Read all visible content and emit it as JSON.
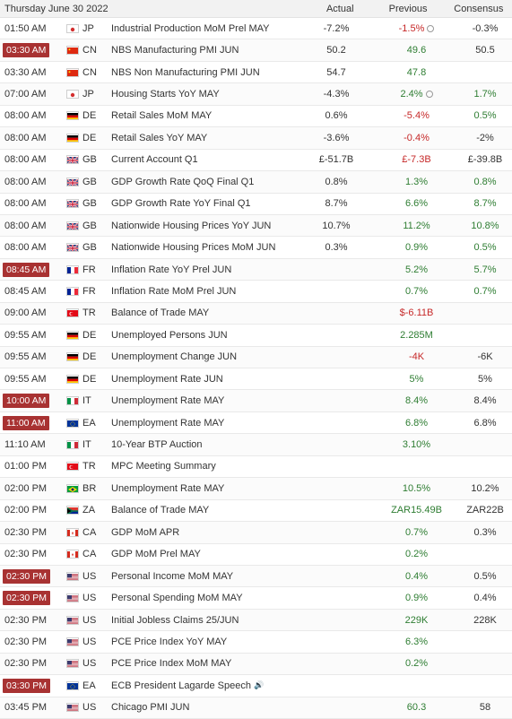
{
  "header": {
    "date": "Thursday June 30 2022",
    "actual": "Actual",
    "previous": "Previous",
    "consensus": "Consensus"
  },
  "colors": {
    "live_badge": "#a83232",
    "positive": "#2e7d32",
    "negative": "#c62828"
  },
  "rows": [
    {
      "time": "01:50 AM",
      "live": false,
      "country": "JP",
      "flag": "jp",
      "event": "Industrial Production MoM Prel MAY",
      "actual": "-7.2%",
      "previous": "-1.5%",
      "previous_color": "red",
      "previous_revised": true,
      "consensus": "-0.3%",
      "consensus_color": "dark"
    },
    {
      "time": "03:30 AM",
      "live": true,
      "country": "CN",
      "flag": "cn",
      "event": "NBS Manufacturing PMI JUN",
      "actual": "50.2",
      "previous": "49.6",
      "previous_color": "green",
      "previous_revised": false,
      "consensus": "50.5",
      "consensus_color": "dark"
    },
    {
      "time": "03:30 AM",
      "live": false,
      "country": "CN",
      "flag": "cn",
      "event": "NBS Non Manufacturing PMI JUN",
      "actual": "54.7",
      "previous": "47.8",
      "previous_color": "green",
      "previous_revised": false,
      "consensus": "",
      "consensus_color": "dark"
    },
    {
      "time": "07:00 AM",
      "live": false,
      "country": "JP",
      "flag": "jp",
      "event": "Housing Starts YoY MAY",
      "actual": "-4.3%",
      "previous": "2.4%",
      "previous_color": "green",
      "previous_revised": true,
      "consensus": "1.7%",
      "consensus_color": "green"
    },
    {
      "time": "08:00 AM",
      "live": false,
      "country": "DE",
      "flag": "de",
      "event": "Retail Sales MoM MAY",
      "actual": "0.6%",
      "previous": "-5.4%",
      "previous_color": "red",
      "previous_revised": false,
      "consensus": "0.5%",
      "consensus_color": "green"
    },
    {
      "time": "08:00 AM",
      "live": false,
      "country": "DE",
      "flag": "de",
      "event": "Retail Sales YoY MAY",
      "actual": "-3.6%",
      "previous": "-0.4%",
      "previous_color": "red",
      "previous_revised": false,
      "consensus": "-2%",
      "consensus_color": "dark"
    },
    {
      "time": "08:00 AM",
      "live": false,
      "country": "GB",
      "flag": "gb",
      "event": "Current Account Q1",
      "actual": "£-51.7B",
      "previous": "£-7.3B",
      "previous_color": "red",
      "previous_revised": false,
      "consensus": "£-39.8B",
      "consensus_color": "dark"
    },
    {
      "time": "08:00 AM",
      "live": false,
      "country": "GB",
      "flag": "gb",
      "event": "GDP Growth Rate QoQ Final Q1",
      "actual": "0.8%",
      "previous": "1.3%",
      "previous_color": "green",
      "previous_revised": false,
      "consensus": "0.8%",
      "consensus_color": "green"
    },
    {
      "time": "08:00 AM",
      "live": false,
      "country": "GB",
      "flag": "gb",
      "event": "GDP Growth Rate YoY Final Q1",
      "actual": "8.7%",
      "previous": "6.6%",
      "previous_color": "green",
      "previous_revised": false,
      "consensus": "8.7%",
      "consensus_color": "green"
    },
    {
      "time": "08:00 AM",
      "live": false,
      "country": "GB",
      "flag": "gb",
      "event": "Nationwide Housing Prices YoY JUN",
      "actual": "10.7%",
      "previous": "11.2%",
      "previous_color": "green",
      "previous_revised": false,
      "consensus": "10.8%",
      "consensus_color": "green"
    },
    {
      "time": "08:00 AM",
      "live": false,
      "country": "GB",
      "flag": "gb",
      "event": "Nationwide Housing Prices MoM JUN",
      "actual": "0.3%",
      "previous": "0.9%",
      "previous_color": "green",
      "previous_revised": false,
      "consensus": "0.5%",
      "consensus_color": "green"
    },
    {
      "time": "08:45 AM",
      "live": true,
      "country": "FR",
      "flag": "fr",
      "event": "Inflation Rate YoY Prel JUN",
      "actual": "",
      "previous": "5.2%",
      "previous_color": "green",
      "previous_revised": false,
      "consensus": "5.7%",
      "consensus_color": "green"
    },
    {
      "time": "08:45 AM",
      "live": false,
      "country": "FR",
      "flag": "fr",
      "event": "Inflation Rate MoM Prel JUN",
      "actual": "",
      "previous": "0.7%",
      "previous_color": "green",
      "previous_revised": false,
      "consensus": "0.7%",
      "consensus_color": "green"
    },
    {
      "time": "09:00 AM",
      "live": false,
      "country": "TR",
      "flag": "tr",
      "event": "Balance of Trade MAY",
      "actual": "",
      "previous": "$-6.11B",
      "previous_color": "red",
      "previous_revised": false,
      "consensus": "",
      "consensus_color": "dark"
    },
    {
      "time": "09:55 AM",
      "live": false,
      "country": "DE",
      "flag": "de",
      "event": "Unemployed Persons JUN",
      "actual": "",
      "previous": "2.285M",
      "previous_color": "green",
      "previous_revised": false,
      "consensus": "",
      "consensus_color": "dark"
    },
    {
      "time": "09:55 AM",
      "live": false,
      "country": "DE",
      "flag": "de",
      "event": "Unemployment Change JUN",
      "actual": "",
      "previous": "-4K",
      "previous_color": "red",
      "previous_revised": false,
      "consensus": "-6K",
      "consensus_color": "dark"
    },
    {
      "time": "09:55 AM",
      "live": false,
      "country": "DE",
      "flag": "de",
      "event": "Unemployment Rate JUN",
      "actual": "",
      "previous": "5%",
      "previous_color": "green",
      "previous_revised": false,
      "consensus": "5%",
      "consensus_color": "dark"
    },
    {
      "time": "10:00 AM",
      "live": true,
      "country": "IT",
      "flag": "it",
      "event": "Unemployment Rate MAY",
      "actual": "",
      "previous": "8.4%",
      "previous_color": "green",
      "previous_revised": false,
      "consensus": "8.4%",
      "consensus_color": "dark"
    },
    {
      "time": "11:00 AM",
      "live": true,
      "country": "EA",
      "flag": "ea",
      "event": "Unemployment Rate MAY",
      "actual": "",
      "previous": "6.8%",
      "previous_color": "green",
      "previous_revised": false,
      "consensus": "6.8%",
      "consensus_color": "dark"
    },
    {
      "time": "11:10 AM",
      "live": false,
      "country": "IT",
      "flag": "it",
      "event": "10-Year BTP Auction",
      "actual": "",
      "previous": "3.10%",
      "previous_color": "green",
      "previous_revised": false,
      "consensus": "",
      "consensus_color": "dark"
    },
    {
      "time": "01:00 PM",
      "live": false,
      "country": "TR",
      "flag": "tr",
      "event": "MPC Meeting Summary",
      "actual": "",
      "previous": "",
      "previous_color": "green",
      "previous_revised": false,
      "consensus": "",
      "consensus_color": "dark"
    },
    {
      "time": "02:00 PM",
      "live": false,
      "country": "BR",
      "flag": "br",
      "event": "Unemployment Rate MAY",
      "actual": "",
      "previous": "10.5%",
      "previous_color": "green",
      "previous_revised": false,
      "consensus": "10.2%",
      "consensus_color": "dark"
    },
    {
      "time": "02:00 PM",
      "live": false,
      "country": "ZA",
      "flag": "za",
      "event": "Balance of Trade MAY",
      "actual": "",
      "previous": "ZAR15.49B",
      "previous_color": "green",
      "previous_revised": false,
      "consensus": "ZAR22B",
      "consensus_color": "dark"
    },
    {
      "time": "02:30 PM",
      "live": false,
      "country": "CA",
      "flag": "ca",
      "event": "GDP MoM APR",
      "actual": "",
      "previous": "0.7%",
      "previous_color": "green",
      "previous_revised": false,
      "consensus": "0.3%",
      "consensus_color": "dark"
    },
    {
      "time": "02:30 PM",
      "live": false,
      "country": "CA",
      "flag": "ca",
      "event": "GDP MoM Prel MAY",
      "actual": "",
      "previous": "0.2%",
      "previous_color": "green",
      "previous_revised": false,
      "consensus": "",
      "consensus_color": "dark"
    },
    {
      "time": "02:30 PM",
      "live": true,
      "country": "US",
      "flag": "us",
      "event": "Personal Income MoM MAY",
      "actual": "",
      "previous": "0.4%",
      "previous_color": "green",
      "previous_revised": false,
      "consensus": "0.5%",
      "consensus_color": "dark"
    },
    {
      "time": "02:30 PM",
      "live": true,
      "country": "US",
      "flag": "us",
      "event": "Personal Spending MoM MAY",
      "actual": "",
      "previous": "0.9%",
      "previous_color": "green",
      "previous_revised": false,
      "consensus": "0.4%",
      "consensus_color": "dark"
    },
    {
      "time": "02:30 PM",
      "live": false,
      "country": "US",
      "flag": "us",
      "event": "Initial Jobless Claims 25/JUN",
      "actual": "",
      "previous": "229K",
      "previous_color": "green",
      "previous_revised": false,
      "consensus": "228K",
      "consensus_color": "dark"
    },
    {
      "time": "02:30 PM",
      "live": false,
      "country": "US",
      "flag": "us",
      "event": "PCE Price Index YoY MAY",
      "actual": "",
      "previous": "6.3%",
      "previous_color": "green",
      "previous_revised": false,
      "consensus": "",
      "consensus_color": "dark"
    },
    {
      "time": "02:30 PM",
      "live": false,
      "country": "US",
      "flag": "us",
      "event": "PCE Price Index MoM MAY",
      "actual": "",
      "previous": "0.2%",
      "previous_color": "green",
      "previous_revised": false,
      "consensus": "",
      "consensus_color": "dark"
    },
    {
      "time": "03:30 PM",
      "live": true,
      "country": "EA",
      "flag": "ea",
      "event": "ECB President Lagarde Speech",
      "speech": true,
      "actual": "",
      "previous": "",
      "previous_color": "green",
      "previous_revised": false,
      "consensus": "",
      "consensus_color": "dark"
    },
    {
      "time": "03:45 PM",
      "live": false,
      "country": "US",
      "flag": "us",
      "event": "Chicago PMI JUN",
      "actual": "",
      "previous": "60.3",
      "previous_color": "green",
      "previous_revised": false,
      "consensus": "58",
      "consensus_color": "dark"
    }
  ]
}
